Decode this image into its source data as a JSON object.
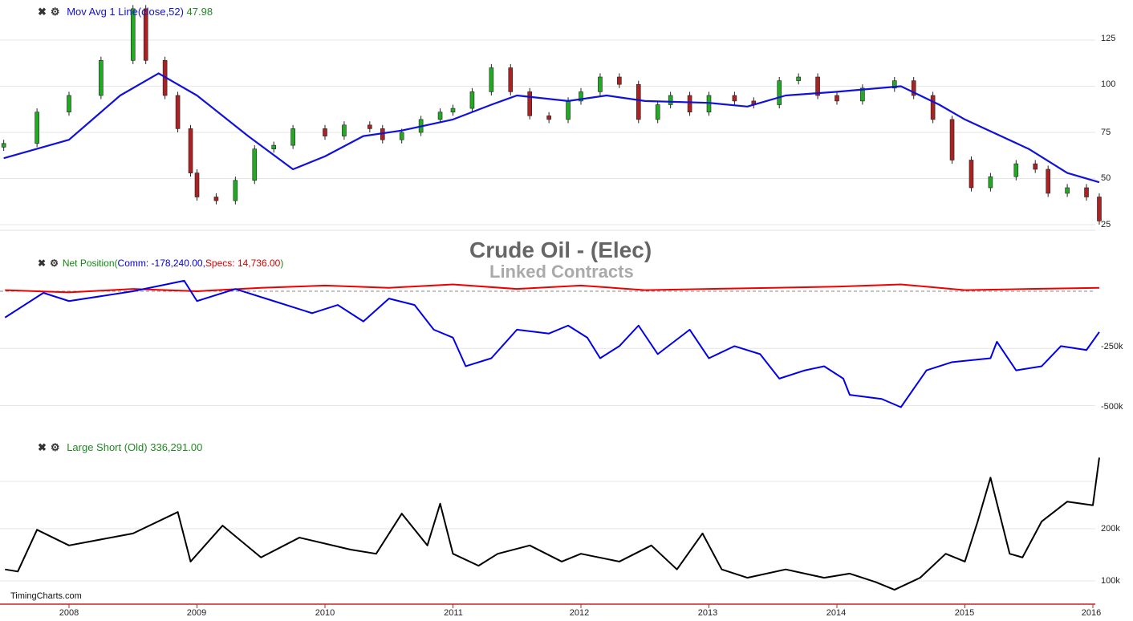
{
  "title": "Crude Oil - (Elec)",
  "subtitle": "Linked Contracts",
  "brand": "TimingCharts.com",
  "colors": {
    "up": "#22aa22",
    "down": "#aa2222",
    "ma": "#1111dd",
    "comm": "#0000ee",
    "specs": "#ee0000",
    "short": "#000000",
    "axis": "#cc2222"
  },
  "chart_data": [
    {
      "type": "candlestick",
      "legend": {
        "close_icon": "close-icon",
        "gear_icon": "gear-icon",
        "label": "Mov Avg 1 Line(close,52)",
        "value": "47.98"
      },
      "y_ticks": [
        "125",
        "100",
        "75",
        "50",
        "25"
      ],
      "y_tick_values": [
        125,
        100,
        75,
        50,
        25
      ],
      "ylim": [
        22,
        145
      ],
      "x": [
        2007.49,
        2007.75,
        2008.0,
        2008.25,
        2008.5,
        2008.6,
        2008.75,
        2008.85,
        2008.95,
        2009.0,
        2009.15,
        2009.3,
        2009.45,
        2009.6,
        2009.75,
        2010.0,
        2010.15,
        2010.35,
        2010.45,
        2010.6,
        2010.75,
        2010.9,
        2011.0,
        2011.15,
        2011.3,
        2011.45,
        2011.6,
        2011.75,
        2011.9,
        2012.0,
        2012.15,
        2012.3,
        2012.45,
        2012.6,
        2012.7,
        2012.85,
        2013.0,
        2013.2,
        2013.35,
        2013.55,
        2013.7,
        2013.85,
        2014.0,
        2014.2,
        2014.45,
        2014.6,
        2014.75,
        2014.9,
        2015.05,
        2015.2,
        2015.4,
        2015.55,
        2015.65,
        2015.8,
        2015.95,
        2016.05
      ],
      "close": [
        69,
        86,
        95,
        114,
        142,
        114,
        95,
        77,
        53,
        40,
        38,
        49,
        66,
        68,
        77,
        73,
        79,
        77,
        71,
        75,
        82,
        86,
        88,
        97,
        110,
        97,
        84,
        82,
        92,
        97,
        105,
        101,
        82,
        90,
        95,
        86,
        95,
        92,
        90,
        103,
        105,
        95,
        92,
        99,
        103,
        95,
        82,
        60,
        45,
        51,
        58,
        55,
        42,
        45,
        40,
        27
      ],
      "ma_x": [
        2007.49,
        2008.0,
        2008.4,
        2008.7,
        2009.0,
        2009.4,
        2009.75,
        2010.0,
        2010.3,
        2010.6,
        2011.0,
        2011.3,
        2011.5,
        2011.9,
        2012.2,
        2012.5,
        2013.0,
        2013.3,
        2013.6,
        2014.0,
        2014.5,
        2014.8,
        2015.0,
        2015.5,
        2015.8,
        2016.05
      ],
      "ma": [
        61,
        71,
        95,
        107,
        95,
        73,
        55,
        62,
        73,
        76,
        82,
        90,
        95,
        92,
        95,
        92,
        91,
        89,
        95,
        97,
        100,
        90,
        82,
        66,
        53,
        47.98
      ]
    },
    {
      "type": "line",
      "legend": {
        "close_icon": "close-icon",
        "gear_icon": "gear-icon",
        "label": "Net Position(",
        "comm_label": "Comm: -178,240.00,",
        "specs_label": "Specs: 14,736.00",
        ")": ")",
        "close_paren": ")"
      },
      "y_ticks": [
        "-250k",
        "-500k"
      ],
      "y_tick_values": [
        -250000,
        -500000
      ],
      "zero_line": "dashed",
      "series": [
        {
          "name": "Comm",
          "x": [
            2007.5,
            2007.8,
            2008.0,
            2008.5,
            2008.9,
            2009.0,
            2009.3,
            2009.6,
            2009.9,
            2010.1,
            2010.3,
            2010.5,
            2010.7,
            2010.85,
            2011.0,
            2011.1,
            2011.3,
            2011.5,
            2011.75,
            2011.9,
            2012.05,
            2012.15,
            2012.3,
            2012.45,
            2012.6,
            2012.85,
            2013.0,
            2013.2,
            2013.4,
            2013.55,
            2013.75,
            2013.9,
            2014.05,
            2014.1,
            2014.35,
            2014.5,
            2014.7,
            2014.9,
            2015.2,
            2015.25,
            2015.4,
            2015.6,
            2015.75,
            2015.95,
            2016.05
          ],
          "values": [
            -115000,
            -7000,
            -43000,
            0,
            46000,
            -43000,
            10000,
            -43000,
            -96000,
            -60000,
            -132000,
            -32000,
            -60000,
            -168000,
            -203000,
            -328000,
            -293000,
            -168000,
            -185000,
            -150000,
            -203000,
            -293000,
            -240000,
            -150000,
            -275000,
            -168000,
            -293000,
            -240000,
            -275000,
            -382000,
            -346000,
            -328000,
            -382000,
            -453000,
            -471000,
            -507000,
            -346000,
            -310000,
            -293000,
            -221000,
            -346000,
            -328000,
            -240000,
            -257000,
            -178240
          ]
        },
        {
          "name": "Specs",
          "x": [
            2007.5,
            2008.0,
            2008.5,
            2009.0,
            2009.5,
            2010.0,
            2010.5,
            2011.0,
            2011.5,
            2012.0,
            2012.5,
            2013.0,
            2013.5,
            2014.0,
            2014.5,
            2015.0,
            2015.5,
            2016.05
          ],
          "values": [
            5000,
            -5000,
            10000,
            0,
            15000,
            25000,
            15000,
            30000,
            10000,
            25000,
            5000,
            10000,
            15000,
            20000,
            30000,
            5000,
            10000,
            14736
          ]
        }
      ]
    },
    {
      "type": "line",
      "legend": {
        "close_icon": "close-icon",
        "gear_icon": "gear-icon",
        "label": "Large Short (Old) 336,291.00"
      },
      "y_ticks": [
        "200k",
        "100k"
      ],
      "y_tick_values": [
        200000,
        100000
      ],
      "x": [
        2007.5,
        2007.6,
        2007.75,
        2008.0,
        2008.5,
        2008.85,
        2008.95,
        2009.2,
        2009.5,
        2009.8,
        2010.2,
        2010.4,
        2010.6,
        2010.8,
        2010.9,
        2011.0,
        2011.2,
        2011.35,
        2011.6,
        2011.85,
        2012.0,
        2012.3,
        2012.55,
        2012.75,
        2012.95,
        2013.1,
        2013.3,
        2013.6,
        2013.9,
        2014.1,
        2014.3,
        2014.45,
        2014.65,
        2014.85,
        2015.0,
        2015.1,
        2015.2,
        2015.35,
        2015.45,
        2015.6,
        2015.8,
        2016.0,
        2016.05
      ],
      "values": [
        122000,
        118000,
        198000,
        168000,
        191000,
        232000,
        137000,
        206000,
        145000,
        183000,
        160000,
        152000,
        229000,
        168000,
        248000,
        152000,
        129000,
        152000,
        168000,
        137000,
        152000,
        137000,
        168000,
        122000,
        191000,
        122000,
        106000,
        122000,
        106000,
        114000,
        98000,
        83000,
        106000,
        152000,
        137000,
        214000,
        298000,
        152000,
        145000,
        214000,
        252000,
        245000,
        336291
      ]
    }
  ],
  "x_ticks": [
    "2008",
    "2009",
    "2010",
    "2011",
    "2012",
    "2013",
    "2014",
    "2015",
    "2016"
  ]
}
